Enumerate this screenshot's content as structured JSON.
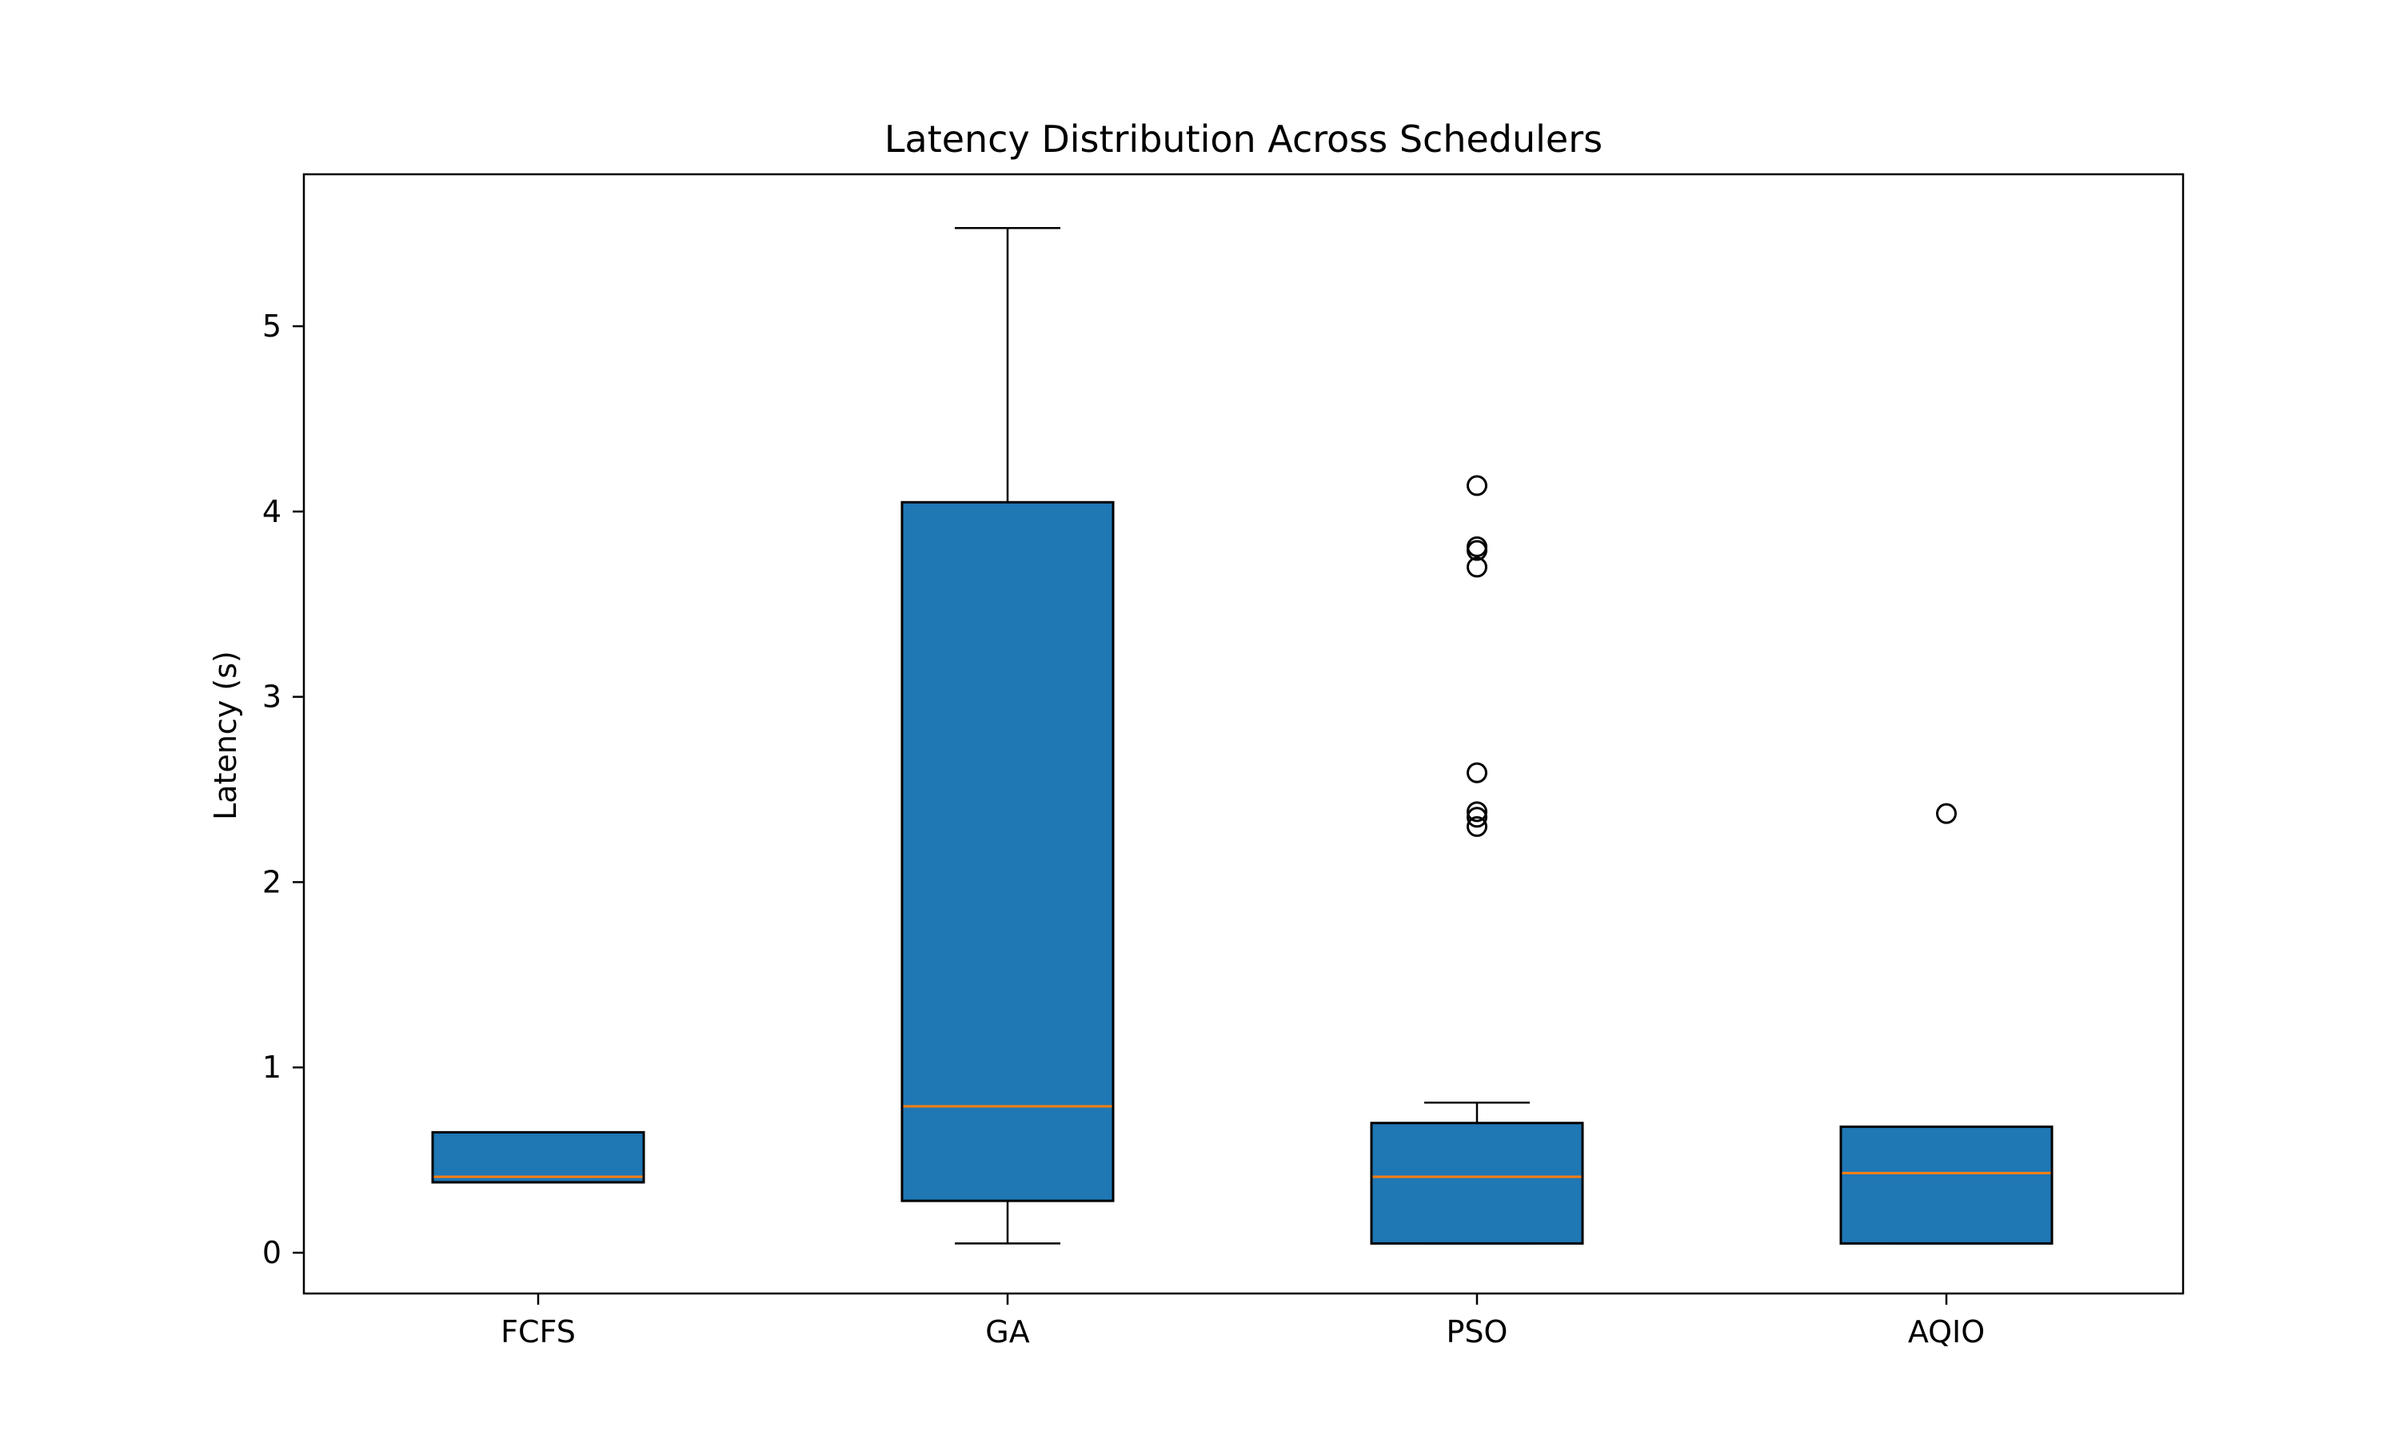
{
  "chart_data": {
    "type": "box",
    "title": "Latency Distribution Across Schedulers",
    "xlabel": "",
    "ylabel": "Latency (s)",
    "ylim": [
      -0.22,
      5.82
    ],
    "yticks": [
      0,
      1,
      2,
      3,
      4,
      5
    ],
    "categories": [
      "FCFS",
      "GA",
      "PSO",
      "AQIO"
    ],
    "boxes": [
      {
        "name": "FCFS",
        "whisker_low": 0.38,
        "q1": 0.38,
        "median": 0.41,
        "q3": 0.65,
        "whisker_high": 0.65,
        "outliers": []
      },
      {
        "name": "GA",
        "whisker_low": 0.05,
        "q1": 0.28,
        "median": 0.79,
        "q3": 4.05,
        "whisker_high": 5.53,
        "outliers": []
      },
      {
        "name": "PSO",
        "whisker_low": 0.05,
        "q1": 0.05,
        "median": 0.41,
        "q3": 0.7,
        "whisker_high": 0.81,
        "outliers": [
          4.14,
          3.81,
          3.79,
          3.7,
          2.59,
          2.38,
          2.35,
          2.3
        ]
      },
      {
        "name": "AQIO",
        "whisker_low": 0.05,
        "q1": 0.05,
        "median": 0.43,
        "q3": 0.68,
        "whisker_high": 0.68,
        "outliers": [
          2.37
        ]
      }
    ],
    "colors": {
      "box_fill": "#1f77b4",
      "median": "#ff7f0e",
      "edge": "#000000"
    },
    "grid": false,
    "legend": "none"
  }
}
